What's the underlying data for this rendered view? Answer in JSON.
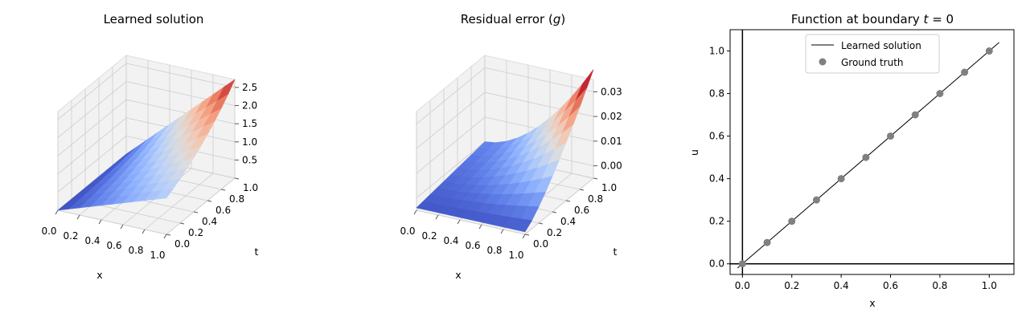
{
  "chart_data": [
    {
      "type": "surface3d",
      "title": "Learned solution",
      "xlabel": "x",
      "ylabel": "t",
      "zlabel": "",
      "x_ticks": [
        "0.0",
        "0.2",
        "0.4",
        "0.6",
        "0.8",
        "1.0"
      ],
      "y_ticks": [
        "0.0",
        "0.2",
        "0.4",
        "0.6",
        "0.8",
        "1.0"
      ],
      "z_ticks": [
        "0.5",
        "1.0",
        "1.5",
        "2.0",
        "2.5"
      ],
      "x_range": [
        0,
        1
      ],
      "y_range": [
        0,
        1
      ],
      "z_range": [
        0,
        2.72
      ],
      "grid": [
        11,
        11
      ],
      "colormap": "coolwarm",
      "surface": "u(x,t) = x*exp(t)"
    },
    {
      "type": "surface3d",
      "title": "Residual error (g)",
      "xlabel": "x",
      "ylabel": "t",
      "zlabel": "",
      "x_ticks": [
        "0.0",
        "0.2",
        "0.4",
        "0.6",
        "0.8",
        "1.0"
      ],
      "y_ticks": [
        "0.0",
        "0.2",
        "0.4",
        "0.6",
        "0.8",
        "1.0"
      ],
      "z_ticks": [
        "0.00",
        "0.01",
        "0.02",
        "0.03"
      ],
      "x_range": [
        0,
        1
      ],
      "y_range": [
        0,
        1
      ],
      "z_range": [
        -0.005,
        0.035
      ],
      "grid": [
        11,
        11
      ],
      "colormap": "coolwarm"
    },
    {
      "type": "line",
      "title": "Function at boundary t = 0",
      "xlabel": "x",
      "ylabel": "u",
      "xlim": [
        -0.05,
        1.1
      ],
      "ylim": [
        -0.05,
        1.1
      ],
      "x_ticks": [
        "0.0",
        "0.2",
        "0.4",
        "0.6",
        "0.8",
        "1.0"
      ],
      "y_ticks": [
        "0.0",
        "0.2",
        "0.4",
        "0.6",
        "0.8",
        "1.0"
      ],
      "legend_position": "top-center",
      "series": [
        {
          "name": "Learned solution",
          "kind": "line",
          "color": "#000000",
          "x": [
            -0.02,
            1.04
          ],
          "y": [
            -0.02,
            1.04
          ]
        },
        {
          "name": "Ground truth",
          "kind": "scatter",
          "color": "#808080",
          "x": [
            0.0,
            0.1,
            0.2,
            0.3,
            0.4,
            0.5,
            0.6,
            0.7,
            0.8,
            0.9,
            1.0
          ],
          "y": [
            0.0,
            0.1,
            0.2,
            0.3,
            0.4,
            0.5,
            0.6,
            0.7,
            0.8,
            0.9,
            1.0
          ]
        }
      ],
      "axis_lines": {
        "x": 0,
        "y": 0
      }
    }
  ]
}
